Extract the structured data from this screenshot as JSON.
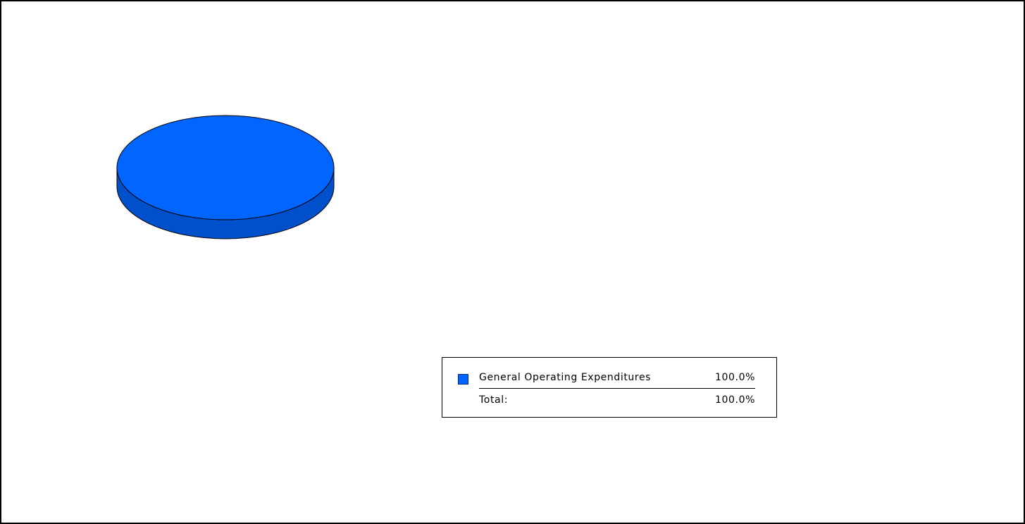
{
  "chart_data": {
    "type": "pie",
    "style": "3d",
    "slices": [
      {
        "label": "General Operating Expendures",
        "value": 100.0,
        "display": "100.0%",
        "color": "#0066ff",
        "side_color": "#0050cc"
      }
    ],
    "legend": {
      "entries": [
        {
          "label": "General Operating Expenditures",
          "display": "100.0%",
          "color": "#0066ff"
        }
      ],
      "total_label": "Total:",
      "total_display": "100.0%",
      "placement": "bottom-center"
    }
  }
}
